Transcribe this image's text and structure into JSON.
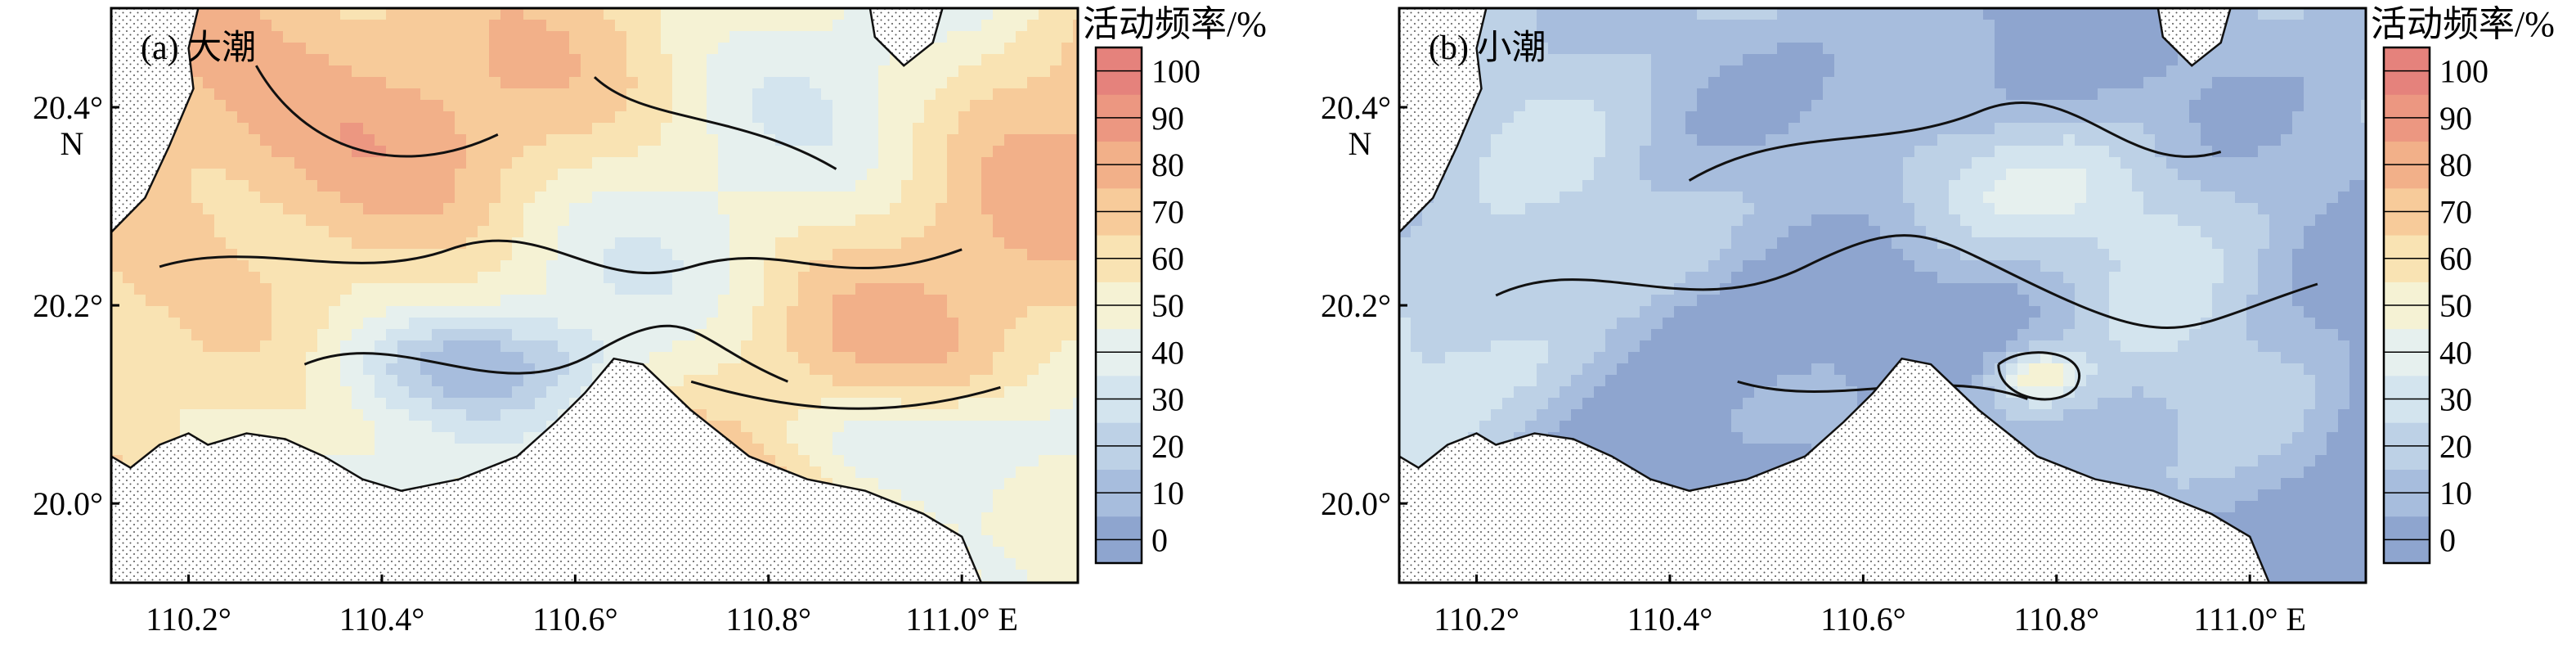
{
  "chart_data": [
    {
      "type": "heatmap",
      "panel_label": "(a) 大潮",
      "colorbar_title": "活动频率/%",
      "colorbar_ticks": [
        0,
        10,
        20,
        30,
        40,
        50,
        60,
        70,
        80,
        90,
        100
      ],
      "x_ticks": [
        "110.2°",
        "110.4°",
        "110.6°",
        "110.8°",
        "111.0° E"
      ],
      "x_tick_values": [
        110.2,
        110.4,
        110.6,
        110.8,
        111.0
      ],
      "y_ticks": [
        "20.0°",
        "20.2°",
        "20.4°"
      ],
      "y_tick_values": [
        20.0,
        20.2,
        20.4
      ],
      "y_unit": "N",
      "xlim": [
        110.12,
        111.12
      ],
      "ylim": [
        19.92,
        20.5
      ],
      "dominant_value_range": [
        50,
        85
      ],
      "land": "stippled"
    },
    {
      "type": "heatmap",
      "panel_label": "(b) 小潮",
      "colorbar_title": "活动频率/%",
      "colorbar_ticks": [
        0,
        10,
        20,
        30,
        40,
        50,
        60,
        70,
        80,
        90,
        100
      ],
      "x_ticks": [
        "110.2°",
        "110.4°",
        "110.6°",
        "110.8°",
        "111.0° E"
      ],
      "x_tick_values": [
        110.2,
        110.4,
        110.6,
        110.8,
        111.0
      ],
      "y_ticks": [
        "20.0°",
        "20.2°",
        "20.4°"
      ],
      "y_tick_values": [
        20.0,
        20.2,
        20.4
      ],
      "y_unit": "N",
      "xlim": [
        110.12,
        111.12
      ],
      "ylim": [
        19.92,
        20.5
      ],
      "dominant_value_range": [
        0,
        40
      ],
      "land": "stippled"
    }
  ],
  "colorscale": {
    "levels": [
      "#8ea5cf",
      "#a7bddd",
      "#bdd1e6",
      "#d3e4ee",
      "#e6f0ee",
      "#f5f2d4",
      "#f9e3b3",
      "#f7cb9a",
      "#f2b089",
      "#ec9781",
      "#e5827c"
    ]
  }
}
